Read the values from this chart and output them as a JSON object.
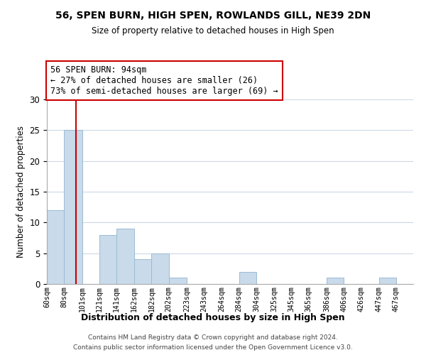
{
  "title": "56, SPEN BURN, HIGH SPEN, ROWLANDS GILL, NE39 2DN",
  "subtitle": "Size of property relative to detached houses in High Spen",
  "xlabel": "Distribution of detached houses by size in High Spen",
  "ylabel": "Number of detached properties",
  "bin_labels": [
    "60sqm",
    "80sqm",
    "101sqm",
    "121sqm",
    "141sqm",
    "162sqm",
    "182sqm",
    "202sqm",
    "223sqm",
    "243sqm",
    "264sqm",
    "284sqm",
    "304sqm",
    "325sqm",
    "345sqm",
    "365sqm",
    "386sqm",
    "406sqm",
    "426sqm",
    "447sqm",
    "467sqm"
  ],
  "bar_heights": [
    12,
    25,
    0,
    8,
    9,
    4,
    5,
    1,
    0,
    0,
    0,
    2,
    0,
    0,
    0,
    0,
    1,
    0,
    0,
    1,
    0
  ],
  "bar_color": "#c9daea",
  "bar_edge_color": "#9bbcd4",
  "ylim": [
    0,
    30
  ],
  "yticks": [
    0,
    5,
    10,
    15,
    20,
    25,
    30
  ],
  "red_line_x": 94,
  "bin_edges": [
    60,
    80,
    101,
    121,
    141,
    162,
    182,
    202,
    223,
    243,
    264,
    284,
    304,
    325,
    345,
    365,
    386,
    406,
    426,
    447,
    467,
    487
  ],
  "annotation_title": "56 SPEN BURN: 94sqm",
  "annotation_line1": "← 27% of detached houses are smaller (26)",
  "annotation_line2": "73% of semi-detached houses are larger (69) →",
  "annotation_box_color": "#ffffff",
  "annotation_border_color": "#cc0000",
  "footer_line1": "Contains HM Land Registry data © Crown copyright and database right 2024.",
  "footer_line2": "Contains public sector information licensed under the Open Government Licence v3.0.",
  "background_color": "#ffffff",
  "grid_color": "#ccd9e6"
}
